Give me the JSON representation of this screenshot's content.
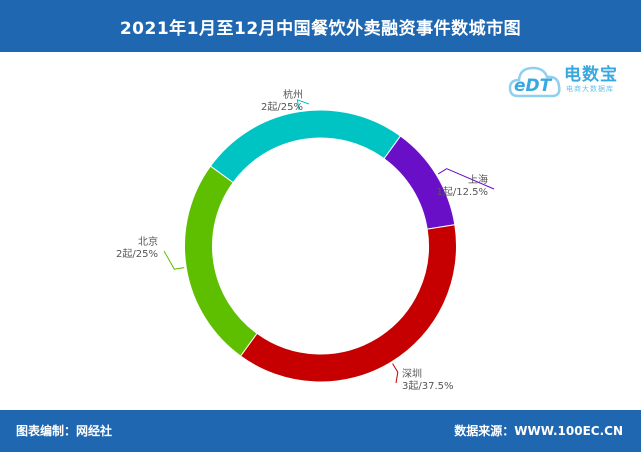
{
  "header": {
    "title": "2021年1月至12月中国餐饮外卖融资事件数城市图"
  },
  "footer": {
    "left": "图表编制：网经社",
    "right": "数据来源：WWW.100EC.CN"
  },
  "watermark": {
    "logo_text": "eDT",
    "name": "电数宝",
    "subtitle": "电商大数据库"
  },
  "colors": {
    "header_bg": "#1f67b0",
    "上海": "#6a0fc8",
    "深圳": "#c60000",
    "北京": "#5dbf00",
    "杭州": "#00c4c4"
  },
  "chart_data": {
    "type": "pie",
    "donut": true,
    "title": "2021年1月至12月中国餐饮外卖融资事件数城市图",
    "start_angle_deg": 36,
    "slices": [
      {
        "name": "上海",
        "value": 1,
        "label": "1起/12.5%",
        "color": "#6a0fc8"
      },
      {
        "name": "深圳",
        "value": 3,
        "label": "3起/37.5%",
        "color": "#c60000"
      },
      {
        "name": "北京",
        "value": 2,
        "label": "2起/25%",
        "color": "#5dbf00"
      },
      {
        "name": "杭州",
        "value": 2,
        "label": "2起/25%",
        "color": "#00c4c4"
      }
    ]
  }
}
